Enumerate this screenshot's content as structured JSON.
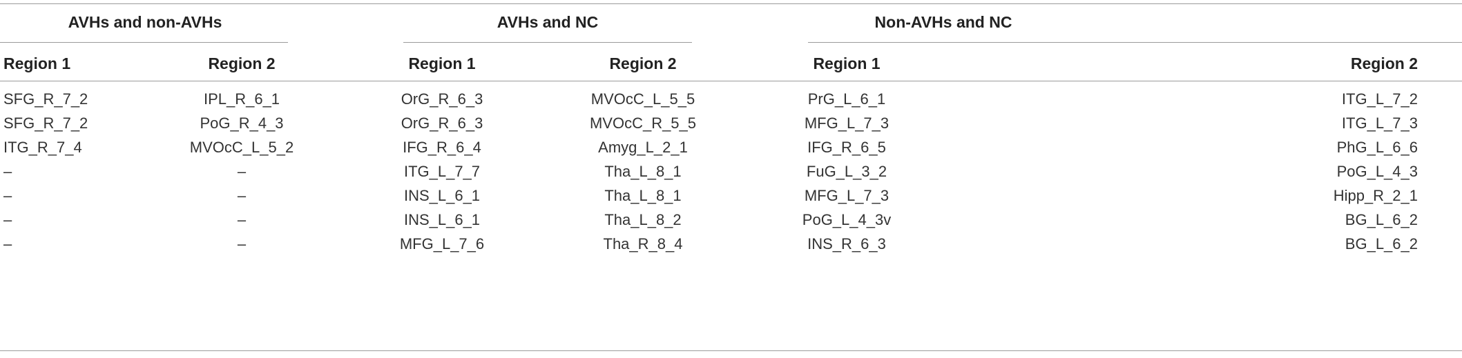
{
  "table": {
    "groups": [
      {
        "title": "AVHs and non-AVHs",
        "headers": [
          "Region 1",
          "Region 2"
        ],
        "rows": [
          [
            "SFG_R_7_2",
            "IPL_R_6_1"
          ],
          [
            "SFG_R_7_2",
            "PoG_R_4_3"
          ],
          [
            "ITG_R_7_4",
            "MVOcC_L_5_2"
          ],
          [
            "–",
            "–"
          ],
          [
            "–",
            "–"
          ],
          [
            "–",
            "–"
          ],
          [
            "–",
            "–"
          ]
        ]
      },
      {
        "title": "AVHs and NC",
        "headers": [
          "Region 1",
          "Region 2"
        ],
        "rows": [
          [
            "OrG_R_6_3",
            "MVOcC_L_5_5"
          ],
          [
            "OrG_R_6_3",
            "MVOcC_R_5_5"
          ],
          [
            "IFG_R_6_4",
            "Amyg_L_2_1"
          ],
          [
            "ITG_L_7_7",
            "Tha_L_8_1"
          ],
          [
            "INS_L_6_1",
            "Tha_L_8_1"
          ],
          [
            "INS_L_6_1",
            "Tha_L_8_2"
          ],
          [
            "MFG_L_7_6",
            "Tha_R_8_4"
          ]
        ]
      },
      {
        "title": "Non-AVHs and NC",
        "headers": [
          "Region 1",
          "Region 2"
        ],
        "rows": [
          [
            "PrG_L_6_1",
            "ITG_L_7_2"
          ],
          [
            "MFG_L_7_3",
            "ITG_L_7_3"
          ],
          [
            "IFG_R_6_5",
            "PhG_L_6_6"
          ],
          [
            "FuG_L_3_2",
            "PoG_L_4_3"
          ],
          [
            "MFG_L_7_3",
            "Hipp_R_2_1"
          ],
          [
            "PoG_L_4_3v",
            "BG_L_6_2"
          ],
          [
            "INS_R_6_3",
            "BG_L_6_2"
          ]
        ]
      }
    ]
  }
}
